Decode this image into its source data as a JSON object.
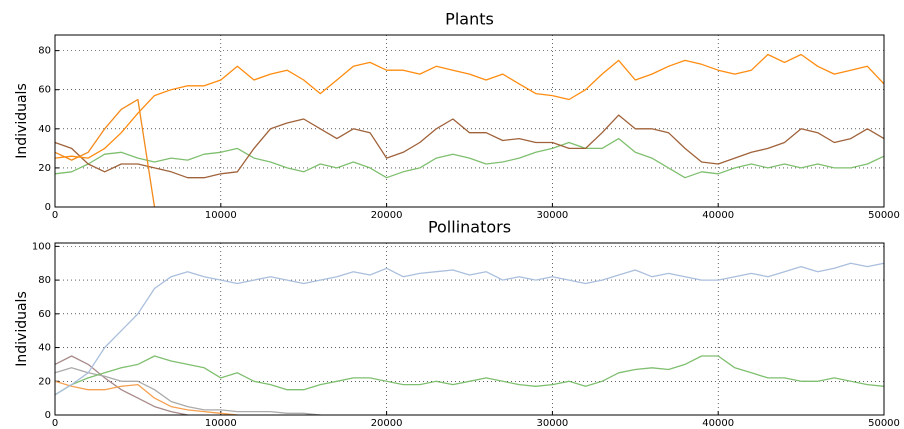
{
  "chart_data": [
    {
      "type": "line",
      "title": "Plants",
      "y_label": "Individuals",
      "x": [
        0,
        1000,
        2000,
        3000,
        4000,
        5000,
        6000,
        7000,
        8000,
        9000,
        10000,
        11000,
        12000,
        13000,
        14000,
        15000,
        16000,
        17000,
        18000,
        19000,
        20000,
        21000,
        22000,
        23000,
        24000,
        25000,
        26000,
        27000,
        28000,
        29000,
        30000,
        31000,
        32000,
        33000,
        34000,
        35000,
        36000,
        37000,
        38000,
        39000,
        40000,
        41000,
        42000,
        43000,
        44000,
        45000,
        46000,
        47000,
        48000,
        49000,
        50000
      ],
      "xlim": [
        0,
        50000
      ],
      "xticks": [
        0,
        10000,
        20000,
        30000,
        40000,
        50000
      ],
      "ylim": [
        0,
        88
      ],
      "yticks": [
        0,
        20,
        40,
        60,
        80
      ],
      "grid": true,
      "series": [
        {
          "color": "#7fbf6f",
          "values": [
            17,
            18,
            22,
            27,
            28,
            25,
            23,
            25,
            24,
            27,
            28,
            30,
            25,
            23,
            20,
            18,
            22,
            20,
            23,
            20,
            15,
            18,
            20,
            25,
            27,
            25,
            22,
            23,
            25,
            28,
            30,
            33,
            30,
            30,
            35,
            28,
            25,
            20,
            15,
            18,
            17,
            20,
            22,
            20,
            22,
            20,
            22,
            20,
            20,
            22,
            26
          ]
        },
        {
          "color": "#a0623a",
          "values": [
            33,
            30,
            22,
            18,
            22,
            22,
            20,
            18,
            15,
            15,
            17,
            18,
            30,
            40,
            43,
            45,
            40,
            35,
            40,
            38,
            25,
            28,
            33,
            40,
            45,
            38,
            38,
            34,
            35,
            33,
            33,
            30,
            30,
            38,
            47,
            40,
            40,
            38,
            30,
            23,
            22,
            25,
            28,
            30,
            33,
            40,
            38,
            33,
            35,
            40,
            35
          ]
        },
        {
          "color": "#f28a1b",
          "values": [
            28,
            24,
            28,
            40,
            50,
            55,
            0,
            null,
            null,
            null,
            null,
            null,
            null,
            null,
            null,
            null,
            null,
            null,
            null,
            null,
            null,
            null,
            null,
            null,
            null,
            null,
            null,
            null,
            null,
            null,
            null,
            null,
            null,
            null,
            null,
            null,
            null,
            null,
            null,
            null,
            null,
            null,
            null,
            null,
            null,
            null,
            null,
            null,
            null,
            null,
            null
          ]
        },
        {
          "color": "#ff8c10",
          "values": [
            25,
            26,
            25,
            30,
            38,
            48,
            57,
            60,
            62,
            62,
            65,
            72,
            65,
            68,
            70,
            65,
            58,
            65,
            72,
            74,
            70,
            70,
            68,
            72,
            70,
            68,
            65,
            68,
            63,
            58,
            57,
            55,
            60,
            68,
            75,
            65,
            68,
            72,
            75,
            73,
            70,
            68,
            70,
            78,
            74,
            78,
            72,
            68,
            70,
            72,
            63
          ]
        }
      ]
    },
    {
      "type": "line",
      "title": "Pollinators",
      "y_label": "Individuals",
      "x": [
        0,
        1000,
        2000,
        3000,
        4000,
        5000,
        6000,
        7000,
        8000,
        9000,
        10000,
        11000,
        12000,
        13000,
        14000,
        15000,
        16000,
        17000,
        18000,
        19000,
        20000,
        21000,
        22000,
        23000,
        24000,
        25000,
        26000,
        27000,
        28000,
        29000,
        30000,
        31000,
        32000,
        33000,
        34000,
        35000,
        36000,
        37000,
        38000,
        39000,
        40000,
        41000,
        42000,
        43000,
        44000,
        45000,
        46000,
        47000,
        48000,
        49000,
        50000
      ],
      "xlim": [
        0,
        50000
      ],
      "xticks": [
        0,
        10000,
        20000,
        30000,
        40000,
        50000
      ],
      "ylim": [
        0,
        102
      ],
      "yticks": [
        0,
        20,
        40,
        60,
        80,
        100
      ],
      "grid": true,
      "series": [
        {
          "color": "#a88a8a",
          "values": [
            30,
            35,
            30,
            22,
            15,
            10,
            5,
            2,
            0,
            null,
            null,
            null,
            null,
            null,
            null,
            null,
            null,
            null,
            null,
            null,
            null,
            null,
            null,
            null,
            null,
            null,
            null,
            null,
            null,
            null,
            null,
            null,
            null,
            null,
            null,
            null,
            null,
            null,
            null,
            null,
            null,
            null,
            null,
            null,
            null,
            null,
            null,
            null,
            null,
            null,
            null
          ]
        },
        {
          "color": "#f5a050",
          "values": [
            20,
            17,
            15,
            15,
            17,
            18,
            10,
            5,
            3,
            2,
            1,
            0,
            null,
            null,
            null,
            null,
            null,
            null,
            null,
            null,
            null,
            null,
            null,
            null,
            null,
            null,
            null,
            null,
            null,
            null,
            null,
            null,
            null,
            null,
            null,
            null,
            null,
            null,
            null,
            null,
            null,
            null,
            null,
            null,
            null,
            null,
            null,
            null,
            null,
            null,
            null
          ]
        },
        {
          "color": "#aaaaaa",
          "values": [
            25,
            28,
            25,
            23,
            20,
            20,
            15,
            8,
            5,
            3,
            3,
            2,
            2,
            2,
            1,
            1,
            0,
            null,
            null,
            null,
            null,
            null,
            null,
            null,
            null,
            null,
            null,
            null,
            null,
            null,
            null,
            null,
            null,
            null,
            null,
            null,
            null,
            null,
            null,
            null,
            null,
            null,
            null,
            null,
            null,
            null,
            null,
            null,
            null,
            null,
            null
          ]
        },
        {
          "color": "#7fbf6f",
          "values": [
            12,
            18,
            22,
            25,
            28,
            30,
            35,
            32,
            30,
            28,
            22,
            25,
            20,
            18,
            15,
            15,
            18,
            20,
            22,
            22,
            20,
            18,
            18,
            20,
            18,
            20,
            22,
            20,
            18,
            17,
            18,
            20,
            17,
            20,
            25,
            27,
            28,
            27,
            30,
            35,
            35,
            28,
            25,
            22,
            22,
            20,
            20,
            22,
            20,
            18,
            17
          ]
        },
        {
          "color": "#aabfdd",
          "values": [
            12,
            18,
            25,
            40,
            50,
            60,
            75,
            82,
            85,
            82,
            80,
            78,
            80,
            82,
            80,
            78,
            80,
            82,
            85,
            83,
            87,
            82,
            84,
            85,
            86,
            83,
            85,
            80,
            82,
            80,
            82,
            80,
            78,
            80,
            83,
            86,
            82,
            84,
            82,
            80,
            80,
            82,
            84,
            82,
            85,
            88,
            85,
            87,
            90,
            88,
            90
          ]
        }
      ]
    }
  ]
}
